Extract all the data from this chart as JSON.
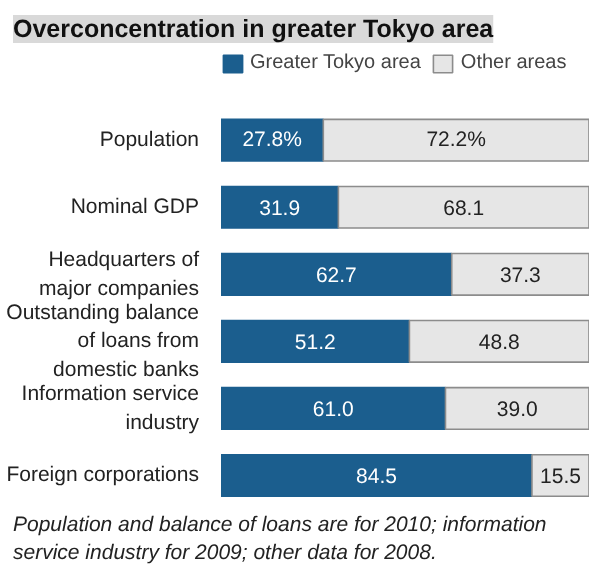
{
  "chart_data": {
    "type": "bar",
    "orientation": "horizontal",
    "stacked": true,
    "title": "Overconcentration in greater Tokyo area",
    "categories": [
      "Population",
      "Nominal GDP",
      "Headquarters of major companies",
      "Outstanding balance of loans from domestic banks",
      "Information service industry",
      "Foreign corporations"
    ],
    "series": [
      {
        "name": "Greater Tokyo area",
        "color": "#1b5e8e",
        "values": [
          27.8,
          31.9,
          62.7,
          51.2,
          61.0,
          84.5
        ],
        "value_labels": [
          "27.8%",
          "31.9",
          "62.7",
          "51.2",
          "61.0",
          "84.5"
        ]
      },
      {
        "name": "Other areas",
        "color": "#e6e6e6",
        "values": [
          72.2,
          68.1,
          37.3,
          48.8,
          39.0,
          15.5
        ],
        "value_labels": [
          "72.2%",
          "68.1",
          "37.3",
          "48.8",
          "39.0",
          "15.5"
        ]
      }
    ],
    "xlim": [
      0,
      100
    ],
    "tick_labels": "y",
    "legend": "top",
    "grid": false,
    "annotations": [
      "Population and balance of loans are for 2010; information service industry for 2009; other data for 2008."
    ]
  }
}
